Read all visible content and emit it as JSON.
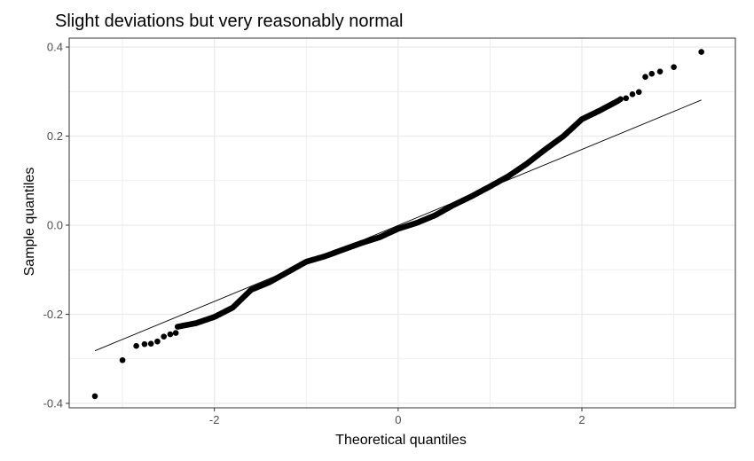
{
  "chart_data": {
    "type": "scatter",
    "title": "Slight deviations but very reasonably normal",
    "xlabel": "Theoretical quantiles",
    "ylabel": "Sample quantiles",
    "xlim": [
      -3.58,
      3.67
    ],
    "ylim": [
      -0.41,
      0.42
    ],
    "x_ticks": [
      {
        "value": -2,
        "label": "-2"
      },
      {
        "value": 0,
        "label": "0"
      },
      {
        "value": 2,
        "label": "2"
      }
    ],
    "y_ticks": [
      {
        "value": -0.4,
        "label": "-0.4"
      },
      {
        "value": -0.2,
        "label": "-0.2"
      },
      {
        "value": 0.0,
        "label": "0.0"
      },
      {
        "value": 0.2,
        "label": "0.2"
      },
      {
        "value": 0.4,
        "label": "0.4"
      }
    ],
    "x_minor": [
      -3,
      -1,
      1,
      3
    ],
    "y_minor": [
      -0.3,
      -0.1,
      0.1,
      0.3
    ],
    "grid": true,
    "reference_line": {
      "x1": -3.3,
      "y1": -0.282,
      "x2": 3.3,
      "y2": 0.281
    },
    "tail_points": [
      {
        "x": -3.3,
        "y": -0.384
      },
      {
        "x": -3.0,
        "y": -0.303
      },
      {
        "x": -2.85,
        "y": -0.271
      },
      {
        "x": -2.76,
        "y": -0.267
      },
      {
        "x": -2.69,
        "y": -0.266
      },
      {
        "x": -2.62,
        "y": -0.261
      },
      {
        "x": -2.55,
        "y": -0.25
      },
      {
        "x": -2.48,
        "y": -0.245
      },
      {
        "x": -2.42,
        "y": -0.242
      },
      {
        "x": 2.42,
        "y": 0.283
      },
      {
        "x": 2.48,
        "y": 0.285
      },
      {
        "x": 2.55,
        "y": 0.294
      },
      {
        "x": 2.62,
        "y": 0.299
      },
      {
        "x": 2.69,
        "y": 0.333
      },
      {
        "x": 2.76,
        "y": 0.34
      },
      {
        "x": 2.85,
        "y": 0.345
      },
      {
        "x": 3.0,
        "y": 0.355
      },
      {
        "x": 3.3,
        "y": 0.389
      }
    ],
    "curve_knots": [
      {
        "x": -2.4,
        "y": -0.228
      },
      {
        "x": -2.2,
        "y": -0.22
      },
      {
        "x": -2.0,
        "y": -0.206
      },
      {
        "x": -1.8,
        "y": -0.185
      },
      {
        "x": -1.6,
        "y": -0.145
      },
      {
        "x": -1.4,
        "y": -0.128
      },
      {
        "x": -1.2,
        "y": -0.105
      },
      {
        "x": -1.0,
        "y": -0.082
      },
      {
        "x": -0.8,
        "y": -0.07
      },
      {
        "x": -0.6,
        "y": -0.055
      },
      {
        "x": -0.4,
        "y": -0.04
      },
      {
        "x": -0.2,
        "y": -0.027
      },
      {
        "x": 0.0,
        "y": -0.008
      },
      {
        "x": 0.2,
        "y": 0.005
      },
      {
        "x": 0.4,
        "y": 0.022
      },
      {
        "x": 0.6,
        "y": 0.045
      },
      {
        "x": 0.8,
        "y": 0.065
      },
      {
        "x": 1.0,
        "y": 0.087
      },
      {
        "x": 1.2,
        "y": 0.11
      },
      {
        "x": 1.4,
        "y": 0.138
      },
      {
        "x": 1.6,
        "y": 0.17
      },
      {
        "x": 1.8,
        "y": 0.2
      },
      {
        "x": 2.0,
        "y": 0.238
      },
      {
        "x": 2.2,
        "y": 0.258
      },
      {
        "x": 2.4,
        "y": 0.28
      }
    ],
    "curve_point_count": 360,
    "point_color": "#000000",
    "line_color": "#000000",
    "grid_color": "#ebebeb",
    "panel_border_color": "#333333"
  }
}
